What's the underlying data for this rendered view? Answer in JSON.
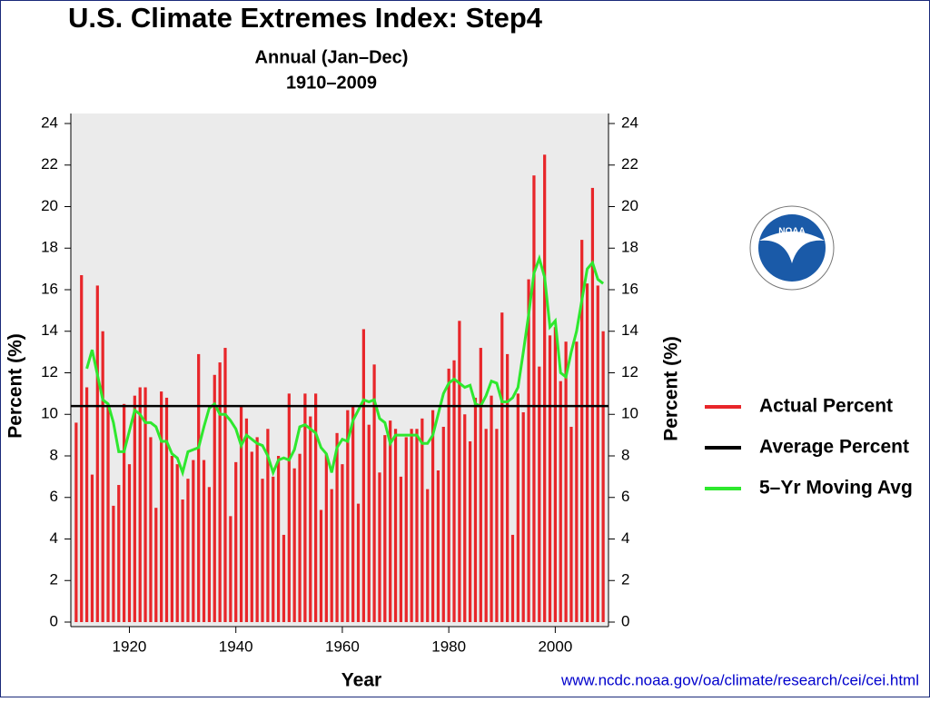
{
  "chart_data": {
    "type": "bar",
    "title": "U.S. Climate Extremes Index: Step4",
    "subtitle": [
      "Annual (Jan–Dec)",
      "1910–2009"
    ],
    "xlabel": "Year",
    "ylabel": "Percent (%)",
    "y2label": "Percent (%)",
    "x": [
      1910,
      1911,
      1912,
      1913,
      1914,
      1915,
      1916,
      1917,
      1918,
      1919,
      1920,
      1921,
      1922,
      1923,
      1924,
      1925,
      1926,
      1927,
      1928,
      1929,
      1930,
      1931,
      1932,
      1933,
      1934,
      1935,
      1936,
      1937,
      1938,
      1939,
      1940,
      1941,
      1942,
      1943,
      1944,
      1945,
      1946,
      1947,
      1948,
      1949,
      1950,
      1951,
      1952,
      1953,
      1954,
      1955,
      1956,
      1957,
      1958,
      1959,
      1960,
      1961,
      1962,
      1963,
      1964,
      1965,
      1966,
      1967,
      1968,
      1969,
      1970,
      1971,
      1972,
      1973,
      1974,
      1975,
      1976,
      1977,
      1978,
      1979,
      1980,
      1981,
      1982,
      1983,
      1984,
      1985,
      1986,
      1987,
      1988,
      1989,
      1990,
      1991,
      1992,
      1993,
      1994,
      1995,
      1996,
      1997,
      1998,
      1999,
      2000,
      2001,
      2002,
      2003,
      2004,
      2005,
      2006,
      2007,
      2008,
      2009
    ],
    "series": [
      {
        "name": "Actual Percent",
        "color": "#e8262a",
        "values": [
          9.6,
          16.7,
          11.3,
          7.1,
          16.2,
          14.0,
          10.4,
          5.6,
          6.6,
          10.5,
          7.6,
          10.9,
          11.3,
          11.3,
          8.9,
          5.5,
          11.1,
          10.8,
          8.0,
          7.6,
          5.9,
          6.9,
          7.8,
          12.9,
          7.8,
          6.5,
          11.9,
          12.5,
          13.2,
          5.1,
          7.7,
          10.4,
          9.8,
          8.2,
          8.9,
          6.9,
          9.3,
          7.0,
          8.0,
          4.2,
          11.0,
          7.4,
          8.1,
          11.0,
          9.9,
          11.0,
          5.4,
          8.1,
          6.4,
          9.1,
          7.6,
          10.2,
          10.4,
          5.7,
          14.1,
          9.5,
          12.4,
          7.2,
          9.0,
          9.7,
          9.3,
          7.0,
          8.9,
          9.3,
          9.3,
          9.8,
          6.4,
          10.2,
          7.3,
          9.4,
          12.2,
          12.6,
          14.5,
          10.0,
          8.7,
          10.8,
          13.2,
          9.3,
          10.9,
          9.3,
          14.9,
          12.9,
          4.2,
          11.0,
          10.1,
          16.5,
          21.5,
          12.3,
          22.5,
          13.8,
          14.2,
          11.6,
          13.5,
          9.4,
          13.5,
          18.4,
          16.3,
          20.9,
          16.2,
          14.0
        ]
      },
      {
        "name": "5–Yr Moving Avg",
        "color": "#2ee82e",
        "values": [
          null,
          null,
          12.2,
          13.1,
          11.9,
          10.7,
          10.5,
          9.6,
          8.2,
          8.2,
          9.2,
          10.2,
          10.0,
          9.6,
          9.6,
          9.4,
          8.7,
          8.7,
          8.1,
          7.9,
          7.2,
          8.2,
          8.3,
          8.4,
          9.4,
          10.3,
          10.5,
          10.0,
          10.0,
          9.7,
          9.3,
          8.5,
          9.0,
          8.8,
          8.6,
          8.5,
          8.0,
          7.2,
          7.8,
          7.9,
          7.8,
          8.3,
          9.4,
          9.5,
          9.3,
          9.1,
          8.4,
          8.1,
          7.2,
          8.4,
          8.8,
          8.7,
          9.7,
          10.2,
          10.7,
          10.6,
          10.7,
          9.8,
          9.6,
          8.6,
          9.0,
          9.0,
          9.0,
          9.0,
          9.0,
          8.6,
          8.6,
          9.0,
          10.0,
          11.0,
          11.5,
          11.7,
          11.5,
          11.3,
          11.4,
          10.5,
          10.4,
          10.9,
          11.6,
          11.5,
          10.6,
          10.6,
          10.8,
          11.3,
          13.0,
          14.8,
          16.8,
          17.5,
          16.6,
          14.2,
          14.5,
          12.0,
          11.8,
          13.0,
          14.0,
          15.5,
          17.0,
          17.3,
          16.5,
          16.3
        ]
      }
    ],
    "reference_lines": [
      {
        "name": "Average Percent",
        "color": "#000000",
        "value": 10.4
      }
    ],
    "xlim": [
      1909,
      2010
    ],
    "xticks": [
      1920,
      1940,
      1960,
      1980,
      2000
    ],
    "ylim": [
      0,
      24
    ],
    "yticks": [
      0,
      2,
      4,
      6,
      8,
      10,
      12,
      14,
      16,
      18,
      20,
      22,
      24
    ],
    "y2lim": [
      0,
      24
    ],
    "y2ticks": [
      0,
      2,
      4,
      6,
      8,
      10,
      12,
      14,
      16,
      18,
      20,
      22,
      24
    ],
    "legend": "right",
    "logo_text": "NOAA",
    "source": "www.ncdc.noaa.gov/oa/climate/research/cei/cei.html"
  }
}
